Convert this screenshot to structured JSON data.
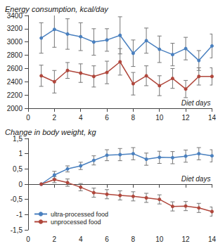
{
  "chart_data": [
    {
      "type": "line",
      "title": "Energy consumption, kcal/day",
      "x_label": "Diet days",
      "x": [
        1,
        2,
        3,
        4,
        5,
        6,
        7,
        8,
        9,
        10,
        11,
        12,
        13,
        14
      ],
      "xlim": [
        0,
        14
      ],
      "xticks": [
        0,
        2,
        4,
        6,
        8,
        10,
        12,
        14
      ],
      "ylim": [
        2000,
        3400
      ],
      "yticks": [
        2000,
        2200,
        2400,
        2600,
        2800,
        3000,
        3200,
        3400
      ],
      "grid": false,
      "series": [
        {
          "color": "#4a80bf",
          "marker": "circle",
          "values": [
            3060,
            3190,
            3120,
            3080,
            3000,
            3030,
            3100,
            2830,
            3020,
            2890,
            2810,
            2900,
            2720,
            2940
          ],
          "errors": [
            230,
            270,
            230,
            210,
            200,
            170,
            280,
            200,
            190,
            200,
            170,
            170,
            150,
            180
          ]
        },
        {
          "color": "#b0473c",
          "marker": "circle",
          "values": [
            2490,
            2400,
            2570,
            2530,
            2480,
            2540,
            2700,
            2370,
            2490,
            2340,
            2450,
            2290,
            2480,
            2480
          ],
          "errors": [
            160,
            170,
            120,
            140,
            160,
            170,
            200,
            170,
            150,
            150,
            150,
            130,
            130,
            130
          ]
        }
      ]
    },
    {
      "type": "line",
      "title": "Change in body weight, kg",
      "x_label": "Diet days",
      "x": [
        1,
        2,
        3,
        4,
        5,
        6,
        7,
        8,
        9,
        10,
        11,
        12,
        13,
        14
      ],
      "xlim": [
        0,
        14
      ],
      "xticks": [
        0,
        2,
        4,
        6,
        8,
        10,
        12,
        14
      ],
      "ylim": [
        -1.5,
        1.5
      ],
      "yticks": [
        {
          "value": -1.5,
          "label": "-1,5"
        },
        -1,
        {
          "value": -0.5,
          "label": "-0,5"
        },
        0,
        {
          "value": 0.5,
          "label": "0,5"
        },
        1,
        {
          "value": 1.5,
          "label": "1,5"
        }
      ],
      "grid": false,
      "legend": "lower left",
      "series": [
        {
          "name": "ultra-processed food",
          "color": "#4a80bf",
          "marker": "circle",
          "values": [
            0,
            0.3,
            0.5,
            0.6,
            0.78,
            0.95,
            0.97,
            1.0,
            0.82,
            0.88,
            0.87,
            0.92,
            1.0,
            0.93
          ],
          "errors": [
            0,
            0.12,
            0.1,
            0.12,
            0.15,
            0.18,
            0.2,
            0.2,
            0.2,
            0.2,
            0.2,
            0.2,
            0.2,
            0.2
          ]
        },
        {
          "name": "unprocessed food",
          "color": "#b0473c",
          "marker": "circle",
          "values": [
            0,
            0.15,
            0.05,
            -0.1,
            -0.28,
            -0.33,
            -0.37,
            -0.4,
            -0.45,
            -0.5,
            -0.73,
            -0.72,
            -0.78,
            -0.9
          ],
          "errors": [
            0,
            0.1,
            0.12,
            0.12,
            0.15,
            0.15,
            0.15,
            0.15,
            0.15,
            0.15,
            0.15,
            0.15,
            0.15,
            0.15
          ]
        }
      ]
    }
  ]
}
